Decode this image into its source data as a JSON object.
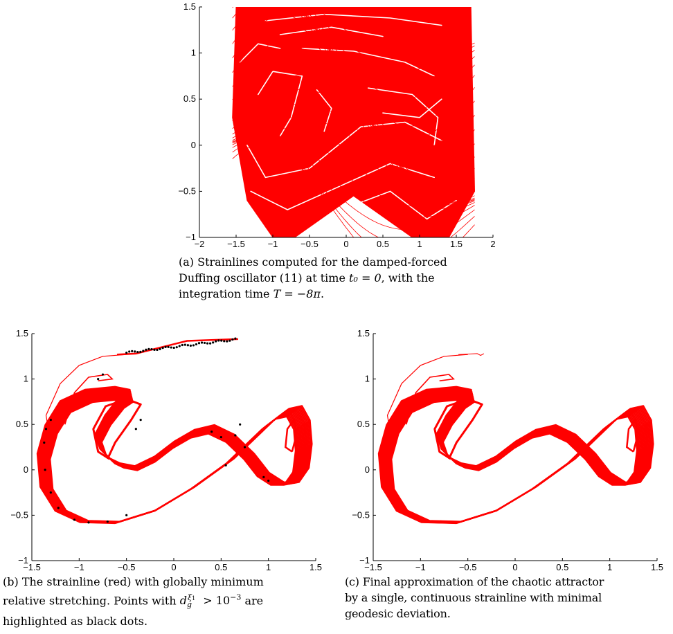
{
  "chart_data": [
    {
      "id": "a",
      "type": "line",
      "title": "",
      "xlabel": "",
      "ylabel": "",
      "xlim": [
        -2,
        2
      ],
      "ylim": [
        -1,
        1.5
      ],
      "xticks": [
        "−2",
        "−1.5",
        "−1",
        "−0.5",
        "0",
        "0.5",
        "1",
        "1.5",
        "2"
      ],
      "yticks": [
        "−1",
        "−0.5",
        "0",
        "0.5",
        "1",
        "1.5"
      ],
      "grid": false,
      "series": [
        {
          "color": "#ff0000",
          "style": "dense strainline family",
          "outline_x": [
            -1.5,
            -1.55,
            -1.35,
            -1.0,
            -0.7,
            0.1,
            0.9,
            1.4,
            1.75,
            1.7
          ],
          "outline_y": [
            1.5,
            0.3,
            -0.6,
            -1.0,
            -1.0,
            -0.55,
            -1.0,
            -1.0,
            -0.5,
            1.5
          ]
        }
      ],
      "caption": {
        "label": "(a)",
        "line1": "Strainlines computed for the damped-forced",
        "line2": "Duffing oscillator (11) at time",
        "t0": "t₀ = 0",
        "line2b": ", with the",
        "line3": "integration time",
        "T": "T = −8π",
        "line3b": "."
      }
    },
    {
      "id": "b",
      "type": "line",
      "title": "",
      "xlabel": "",
      "ylabel": "",
      "xlim": [
        -1.5,
        1.5
      ],
      "ylim": [
        -1,
        1.5
      ],
      "xticks": [
        "−1.5",
        "−1",
        "−0.5",
        "0",
        "0.5",
        "1",
        "1.5"
      ],
      "yticks": [
        "−1",
        "−0.5",
        "0",
        "0.5",
        "1",
        "1.5"
      ],
      "grid": false,
      "series": [
        {
          "color": "#ff0000",
          "style": "strainline with globally minimum relative stretching",
          "tail_end": [
            0.68,
            1.44
          ]
        },
        {
          "color": "#000000",
          "style": "highlighted points (black dots)"
        }
      ],
      "caption": {
        "label": "(b)",
        "line1": "The strainline (red) with globally minimum",
        "line2a": "relative stretching. Points with",
        "line2b": "are",
        "line3": "highlighted as black dots."
      }
    },
    {
      "id": "c",
      "type": "line",
      "title": "",
      "xlabel": "",
      "ylabel": "",
      "xlim": [
        -1.5,
        1.5
      ],
      "ylim": [
        -1,
        1.5
      ],
      "xticks": [
        "−1.5",
        "−1",
        "−0.5",
        "0",
        "0.5",
        "1",
        "1.5"
      ],
      "yticks": [
        "−1",
        "−0.5",
        "0",
        "0.5",
        "1",
        "1.5"
      ],
      "grid": false,
      "series": [
        {
          "color": "#ff0000",
          "style": "single continuous strainline",
          "tail_end": [
            -0.33,
            1.28
          ]
        }
      ],
      "caption": {
        "label": "(c)",
        "line1": "Final approximation of the chaotic attractor",
        "line2": "by a single, continuous strainline with minimal",
        "line3": "geodesic deviation."
      }
    }
  ],
  "colors": {
    "strainline": "#ff0000",
    "highlight": "#000000",
    "axis": "#000000"
  }
}
